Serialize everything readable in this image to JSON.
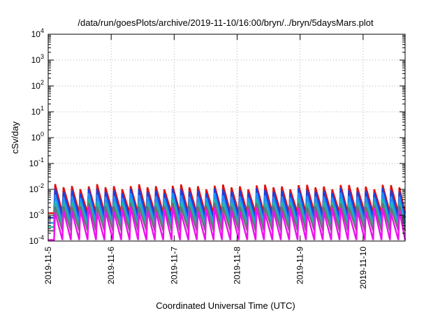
{
  "chart_data": {
    "type": "line",
    "title": "/data/run/goesPlots/archive/2019-11-10/16:00/bryn/../bryn/5daysMars.plot",
    "xlabel": "Coordinated Universal Time (UTC)",
    "ylabel": "cSv/day",
    "y_scale": "log",
    "ylim": [
      0.0001,
      10000
    ],
    "y_ticks": [
      {
        "value": 0.0001,
        "base": "10",
        "exp": "-4"
      },
      {
        "value": 0.001,
        "base": "10",
        "exp": "-3"
      },
      {
        "value": 0.01,
        "base": "10",
        "exp": "-2"
      },
      {
        "value": 0.1,
        "base": "10",
        "exp": "-1"
      },
      {
        "value": 1,
        "base": "10",
        "exp": "0"
      },
      {
        "value": 10,
        "base": "10",
        "exp": "1"
      },
      {
        "value": 100,
        "base": "10",
        "exp": "2"
      },
      {
        "value": 1000,
        "base": "10",
        "exp": "3"
      },
      {
        "value": 10000,
        "base": "10",
        "exp": "4"
      }
    ],
    "xlim": [
      "2019-11-05T00:00",
      "2019-11-10T16:00"
    ],
    "x_ticks": [
      "2019-11-5",
      "2019-11-6",
      "2019-11-7",
      "2019-11-8",
      "2019-11-9",
      "2019-11-10"
    ],
    "grid": true,
    "cycles_per_day": 7.5,
    "series": [
      {
        "color": "#e01010",
        "peak_low": 0.0095,
        "peak_high": 0.017,
        "trough": 0.0012
      },
      {
        "color": "#1a40e0",
        "peak_low": 0.0065,
        "peak_high": 0.012,
        "trough": 0.0008
      },
      {
        "color": "#1e90ff",
        "peak_low": 0.0042,
        "peak_high": 0.0075,
        "trough": 0.0005
      },
      {
        "color": "#20b8a0",
        "peak_low": 0.0026,
        "peak_high": 0.0042,
        "trough": 0.00035
      },
      {
        "color": "#707070",
        "peak_low": 0.0018,
        "peak_high": 0.003,
        "trough": 0.00025
      },
      {
        "color": "#ee10ee",
        "peak_low": 0.0011,
        "peak_high": 0.0022,
        "trough": 0.00011
      }
    ]
  }
}
